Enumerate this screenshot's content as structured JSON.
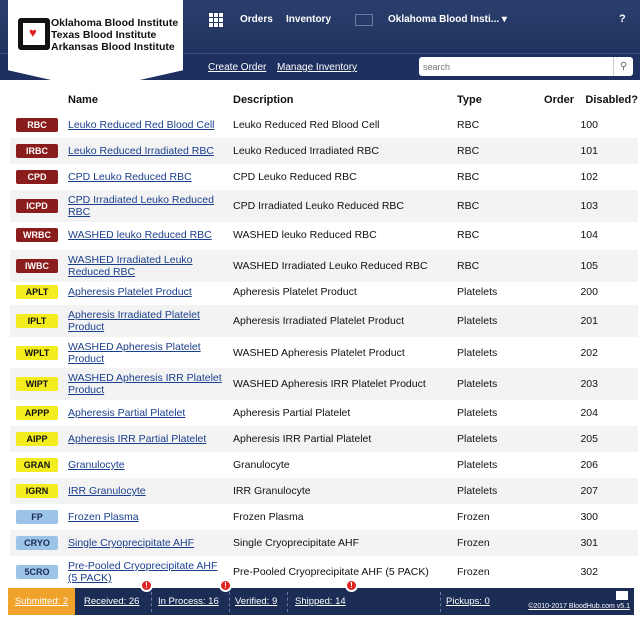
{
  "header": {
    "logo_lines": [
      "Oklahoma Blood Institute",
      "Texas Blood Institute",
      "Arkansas Blood Institute"
    ],
    "nav": [
      "Orders",
      "Inventory"
    ],
    "org_selector": "Oklahoma Blood Insti... ▾",
    "help": "?"
  },
  "subnav": {
    "links": [
      "Create Order",
      "Manage Inventory"
    ],
    "search_placeholder": "search"
  },
  "table": {
    "headers": [
      "Name",
      "Description",
      "Type",
      "Order",
      "Disabled?"
    ],
    "rows": [
      {
        "code": "RBC",
        "name": "Leuko Reduced Red Blood Cell",
        "desc": "Leuko Reduced Red Blood Cell",
        "type": "RBC",
        "order": "100"
      },
      {
        "code": "IRBC",
        "name": "Leuko Reduced Irradiated RBC",
        "desc": "Leuko Reduced Irradiated RBC",
        "type": "RBC",
        "order": "101"
      },
      {
        "code": "CPD",
        "name": "CPD Leuko Reduced RBC",
        "desc": "CPD Leuko Reduced RBC",
        "type": "RBC",
        "order": "102"
      },
      {
        "code": "ICPD",
        "name": "CPD Irradiated Leuko Reduced RBC",
        "desc": "CPD Irradiated Leuko Reduced RBC",
        "type": "RBC",
        "order": "103"
      },
      {
        "code": "WRBC",
        "name": "WASHED leuko Reduced RBC",
        "desc": "WASHED leuko Reduced RBC",
        "type": "RBC",
        "order": "104"
      },
      {
        "code": "IWBC",
        "name": "WASHED Irradiated Leuko Reduced RBC",
        "desc": "WASHED Irradiated Leuko Reduced RBC",
        "type": "RBC",
        "order": "105"
      },
      {
        "code": "APLT",
        "name": "Apheresis Platelet Product",
        "desc": "Apheresis Platelet Product",
        "type": "Platelets",
        "order": "200"
      },
      {
        "code": "IPLT",
        "name": "Apheresis Irradiated Platelet Product",
        "desc": "Apheresis Irradiated Platelet Product",
        "type": "Platelets",
        "order": "201"
      },
      {
        "code": "WPLT",
        "name": "WASHED Apheresis Platelet Product",
        "desc": "WASHED Apheresis Platelet Product",
        "type": "Platelets",
        "order": "202"
      },
      {
        "code": "WIPT",
        "name": "WASHED Apheresis IRR Platelet Product",
        "desc": "WASHED Apheresis IRR Platelet Product",
        "type": "Platelets",
        "order": "203"
      },
      {
        "code": "APPP",
        "name": "Apheresis Partial Platelet",
        "desc": "Apheresis Partial Platelet",
        "type": "Platelets",
        "order": "204"
      },
      {
        "code": "AIPP",
        "name": "Apheresis IRR Partial Platelet",
        "desc": "Apheresis IRR Partial Platelet",
        "type": "Platelets",
        "order": "205"
      },
      {
        "code": "GRAN",
        "name": "Granulocyte",
        "desc": "Granulocyte",
        "type": "Platelets",
        "order": "206"
      },
      {
        "code": "IGRN",
        "name": "IRR Granulocyte",
        "desc": "IRR Granulocyte",
        "type": "Platelets",
        "order": "207"
      },
      {
        "code": "FP",
        "name": "Frozen Plasma",
        "desc": "Frozen Plasma",
        "type": "Frozen",
        "order": "300"
      },
      {
        "code": "CRYO",
        "name": "Single Cryoprecipitate AHF",
        "desc": "Single Cryoprecipitate AHF",
        "type": "Frozen",
        "order": "301"
      },
      {
        "code": "5CRO",
        "name": "Pre-Pooled Cryoprecipitate AHF (5 PACK)",
        "desc": "Pre-Pooled Cryoprecipitate AHF (5 PACK)",
        "type": "Frozen",
        "order": "302"
      }
    ]
  },
  "type_colors": {
    "RBC": {
      "bg": "#8b1c1c",
      "fg": "#ffffff"
    },
    "Platelets": {
      "bg": "#f3ec1f",
      "fg": "#111111"
    },
    "Frozen": {
      "bg": "#9cc3e8",
      "fg": "#1b2c55"
    }
  },
  "footer": {
    "items": [
      "Submitted: 2",
      "Received: 26",
      "In Process: 16",
      "Verified: 9",
      "Shipped: 14",
      "Pickups: 0"
    ],
    "copyright": "©2010-2017 BloodHub.com v5.1"
  }
}
